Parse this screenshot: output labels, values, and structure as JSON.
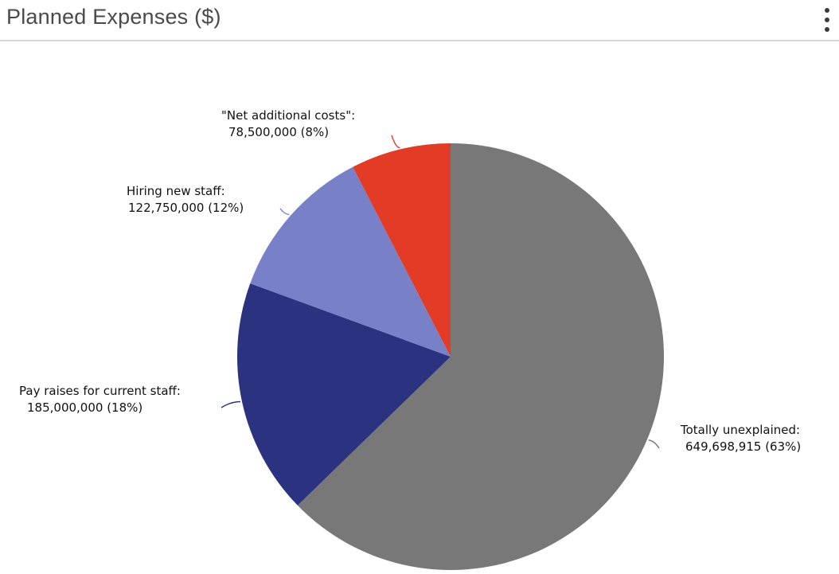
{
  "header": {
    "title": "Planned Expenses ($)",
    "menu_icon": "kebab-menu-icon"
  },
  "chart_data": {
    "type": "pie",
    "title": "Planned Expenses ($)",
    "slices": [
      {
        "label": "Totally unexplained:",
        "value_text": "649,698,915 (63%)",
        "value": 649698915,
        "percent": 63,
        "color": "#787878"
      },
      {
        "label": "Pay raises for current staff:",
        "value_text": "185,000,000 (18%)",
        "value": 185000000,
        "percent": 18,
        "color": "#2b3380"
      },
      {
        "label": "Hiring new staff:",
        "value_text": "122,750,000 (12%)",
        "value": 122750000,
        "percent": 12,
        "color": "#7880c8"
      },
      {
        "label": "\"Net additional costs\":",
        "value_text": "78,500,000 (8%)",
        "value": 78500000,
        "percent": 8,
        "color": "#e23c26"
      }
    ]
  }
}
